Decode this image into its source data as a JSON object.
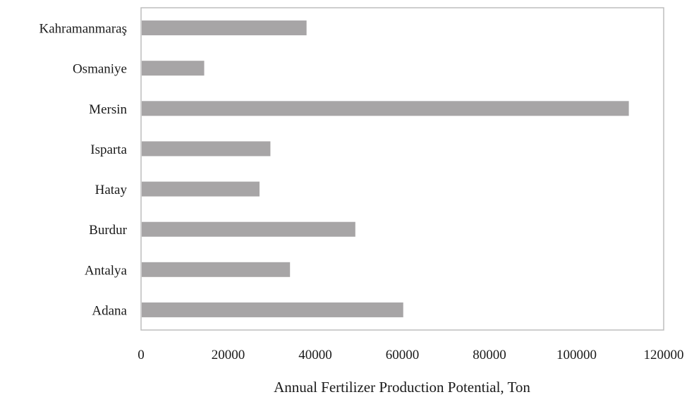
{
  "chart_data": {
    "type": "bar",
    "orientation": "horizontal",
    "title": "",
    "xlabel": "Annual Fertilizer Production Potential, Ton",
    "ylabel": "",
    "categories": [
      "Kahramanmaraş",
      "Osmaniye",
      "Mersin",
      "Isparta",
      "Hatay",
      "Burdur",
      "Antalya",
      "Adana"
    ],
    "values": [
      38000,
      14500,
      112000,
      29700,
      27200,
      49200,
      34200,
      60200
    ],
    "xlim": [
      0,
      120000
    ],
    "xticks": [
      0,
      20000,
      40000,
      60000,
      80000,
      100000,
      120000
    ],
    "xtick_labels": [
      "0",
      "20000",
      "40000",
      "60000",
      "80000",
      "100000",
      "120000"
    ],
    "grid": false,
    "legend": "none",
    "bar_color": "#a7a5a6",
    "frame_color": "#bdbdbd"
  }
}
